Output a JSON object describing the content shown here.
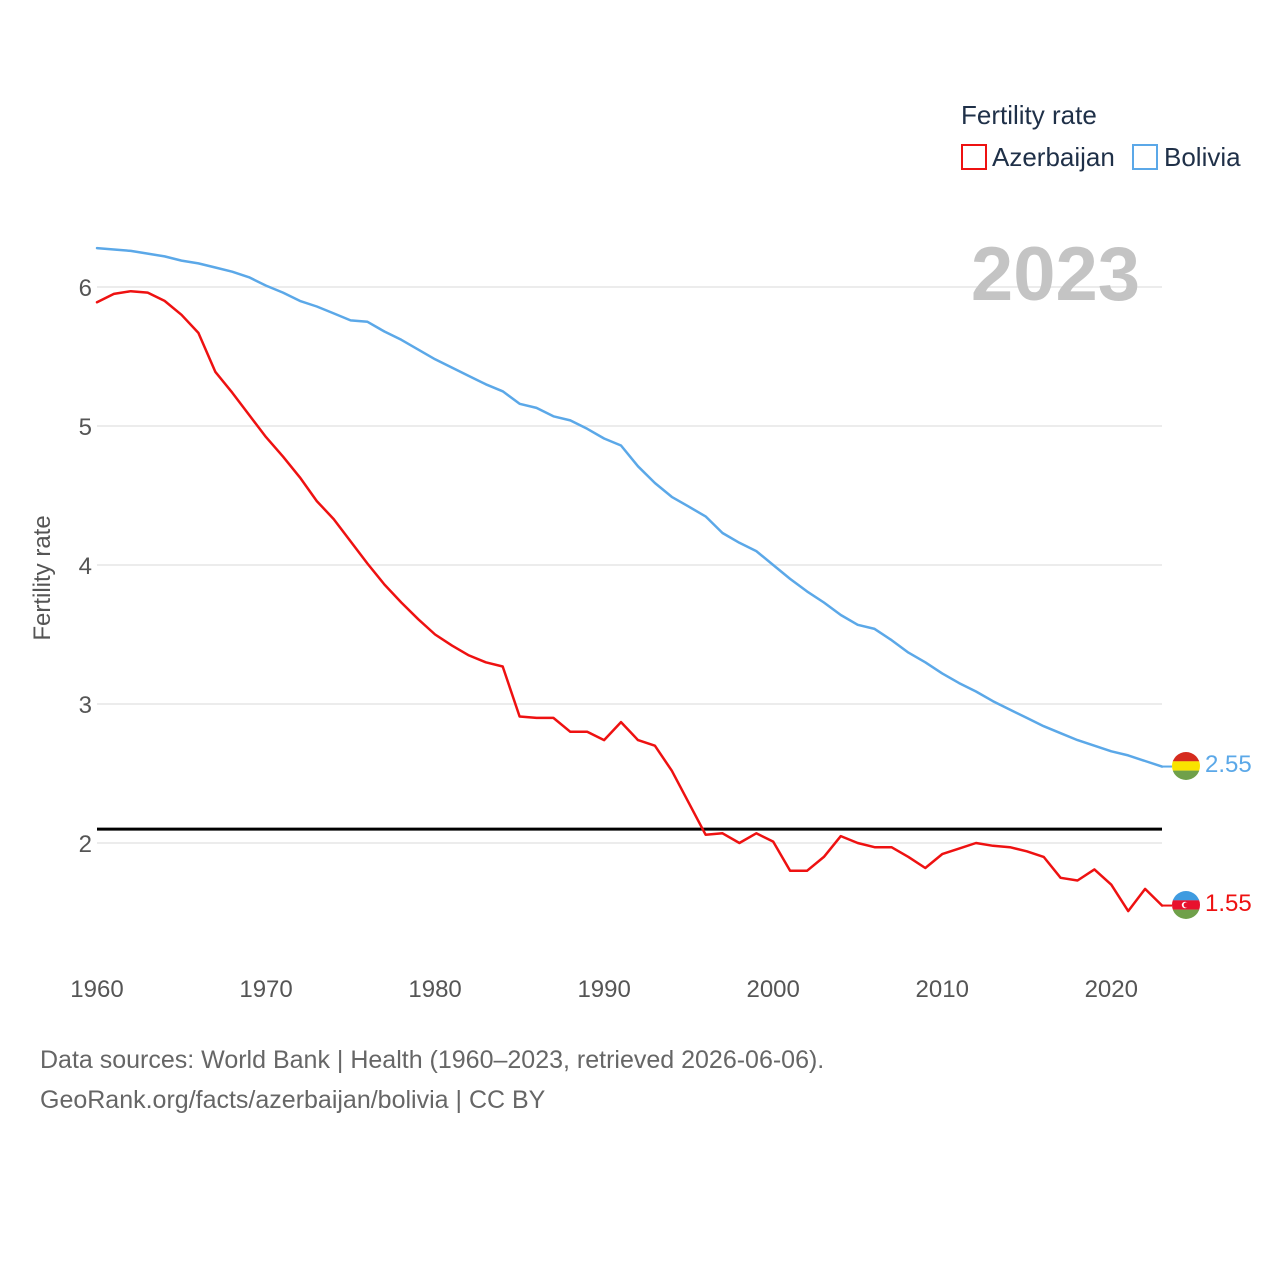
{
  "chart_data": {
    "type": "line",
    "title": "",
    "xlabel": "",
    "ylabel": "Fertility rate",
    "xlim": [
      1960,
      2023
    ],
    "ylim": [
      1.3,
      6.5
    ],
    "x_ticks": [
      1960,
      1970,
      1980,
      1990,
      2000,
      2010,
      2020
    ],
    "y_ticks": [
      2,
      3,
      4,
      5,
      6
    ],
    "grid": true,
    "legend_title": "Fertility rate",
    "legend_position": "top-right",
    "year_label": "2023",
    "reference_line": 2.1,
    "x": [
      1960,
      1961,
      1962,
      1963,
      1964,
      1965,
      1966,
      1967,
      1968,
      1969,
      1970,
      1971,
      1972,
      1973,
      1974,
      1975,
      1976,
      1977,
      1978,
      1979,
      1980,
      1981,
      1982,
      1983,
      1984,
      1985,
      1986,
      1987,
      1988,
      1989,
      1990,
      1991,
      1992,
      1993,
      1994,
      1995,
      1996,
      1997,
      1998,
      1999,
      2000,
      2001,
      2002,
      2003,
      2004,
      2005,
      2006,
      2007,
      2008,
      2009,
      2010,
      2011,
      2012,
      2013,
      2014,
      2015,
      2016,
      2017,
      2018,
      2019,
      2020,
      2021,
      2022,
      2023
    ],
    "series": [
      {
        "name": "Azerbaijan",
        "color": "#ee1111",
        "end_label": "1.55",
        "values": [
          5.89,
          5.95,
          5.97,
          5.96,
          5.9,
          5.8,
          5.67,
          5.39,
          5.24,
          5.08,
          4.92,
          4.78,
          4.63,
          4.46,
          4.33,
          4.17,
          4.01,
          3.86,
          3.73,
          3.61,
          3.5,
          3.42,
          3.35,
          3.3,
          3.27,
          2.91,
          2.9,
          2.9,
          2.8,
          2.8,
          2.74,
          2.87,
          2.74,
          2.7,
          2.52,
          2.29,
          2.06,
          2.07,
          2.0,
          2.07,
          2.01,
          1.8,
          1.8,
          1.9,
          2.05,
          2.0,
          1.97,
          1.97,
          1.9,
          1.82,
          1.92,
          1.96,
          2.0,
          1.98,
          1.97,
          1.94,
          1.9,
          1.75,
          1.73,
          1.81,
          1.7,
          1.51,
          1.67,
          1.55
        ]
      },
      {
        "name": "Bolivia",
        "color": "#5ba8e8",
        "end_label": "2.55",
        "values": [
          6.28,
          6.27,
          6.26,
          6.24,
          6.22,
          6.19,
          6.17,
          6.14,
          6.11,
          6.07,
          6.01,
          5.96,
          5.9,
          5.86,
          5.81,
          5.76,
          5.75,
          5.68,
          5.62,
          5.55,
          5.48,
          5.42,
          5.36,
          5.3,
          5.25,
          5.16,
          5.13,
          5.07,
          5.04,
          4.98,
          4.91,
          4.86,
          4.71,
          4.59,
          4.49,
          4.42,
          4.35,
          4.23,
          4.16,
          4.1,
          4.0,
          3.9,
          3.81,
          3.73,
          3.64,
          3.57,
          3.54,
          3.46,
          3.37,
          3.3,
          3.22,
          3.15,
          3.09,
          3.02,
          2.96,
          2.9,
          2.84,
          2.79,
          2.74,
          2.7,
          2.66,
          2.63,
          2.59,
          2.55
        ]
      }
    ]
  },
  "footer": {
    "line1": "Data sources: World Bank | Health (1960–2023, retrieved 2026-06-06).",
    "line2": "GeoRank.org/facts/azerbaijan/bolivia | CC BY"
  }
}
